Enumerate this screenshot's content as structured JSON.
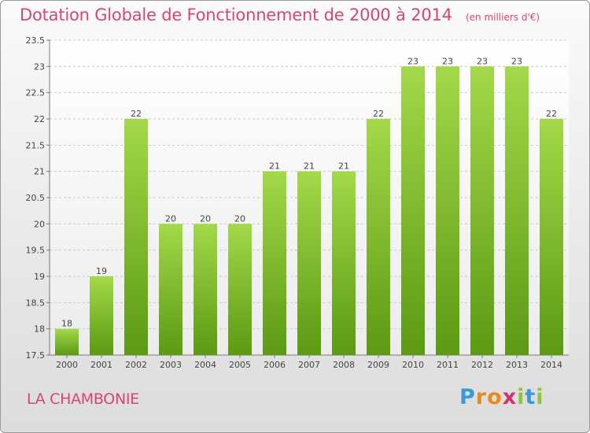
{
  "chart_data": {
    "type": "bar",
    "title": "Dotation Globale de Fonctionnement de 2000 à 2014",
    "subtitle": "(en milliers d'€)",
    "categories": [
      "2000",
      "2001",
      "2002",
      "2003",
      "2004",
      "2005",
      "2006",
      "2007",
      "2008",
      "2009",
      "2010",
      "2011",
      "2012",
      "2013",
      "2014"
    ],
    "values": [
      18,
      19,
      22,
      20,
      20,
      20,
      21,
      21,
      21,
      22,
      23,
      23,
      23,
      23,
      22
    ],
    "ylim": [
      17.5,
      23.5
    ],
    "yticks": [
      "17.5",
      "18",
      "18.5",
      "19",
      "19.5",
      "20",
      "20.5",
      "21",
      "21.5",
      "22",
      "22.5",
      "23",
      "23.5"
    ],
    "xlabel": "",
    "ylabel": "",
    "grid": "horizontal dashed",
    "bar_color_top": "#a3d94a",
    "bar_color_bottom": "#5b9a12"
  },
  "commune_name": "LA CHAMBONIE",
  "brand": {
    "letters": [
      "P",
      "r",
      "o",
      "x",
      "i",
      "t",
      "i"
    ],
    "colors": [
      "#3a9ad9",
      "#e98b1c",
      "#e98b1c",
      "#d62f6f",
      "#8cc83c",
      "#3a9ad9",
      "#8cc83c"
    ]
  }
}
